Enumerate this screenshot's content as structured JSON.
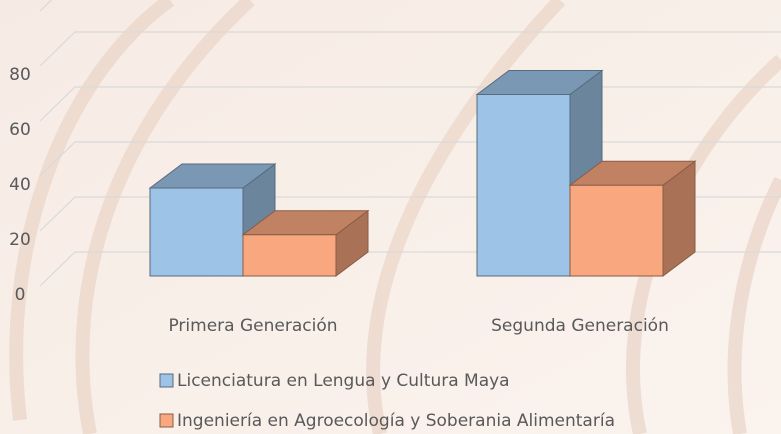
{
  "chart_data": {
    "type": "bar3d",
    "categories": [
      "Primera Generación",
      "Segunda Generación"
    ],
    "series": [
      {
        "name": "Licenciatura en Lengua y Cultura Maya",
        "color": "#9dc3e6",
        "values": [
          32,
          66
        ]
      },
      {
        "name": "Ingeniería en Agroecología y Soberania Alimentaría",
        "color": "#f8a77f",
        "values": [
          15,
          33
        ]
      }
    ],
    "ylim": [
      0,
      100
    ],
    "yticks": [
      0,
      20,
      40,
      60,
      80
    ],
    "grid": true
  }
}
